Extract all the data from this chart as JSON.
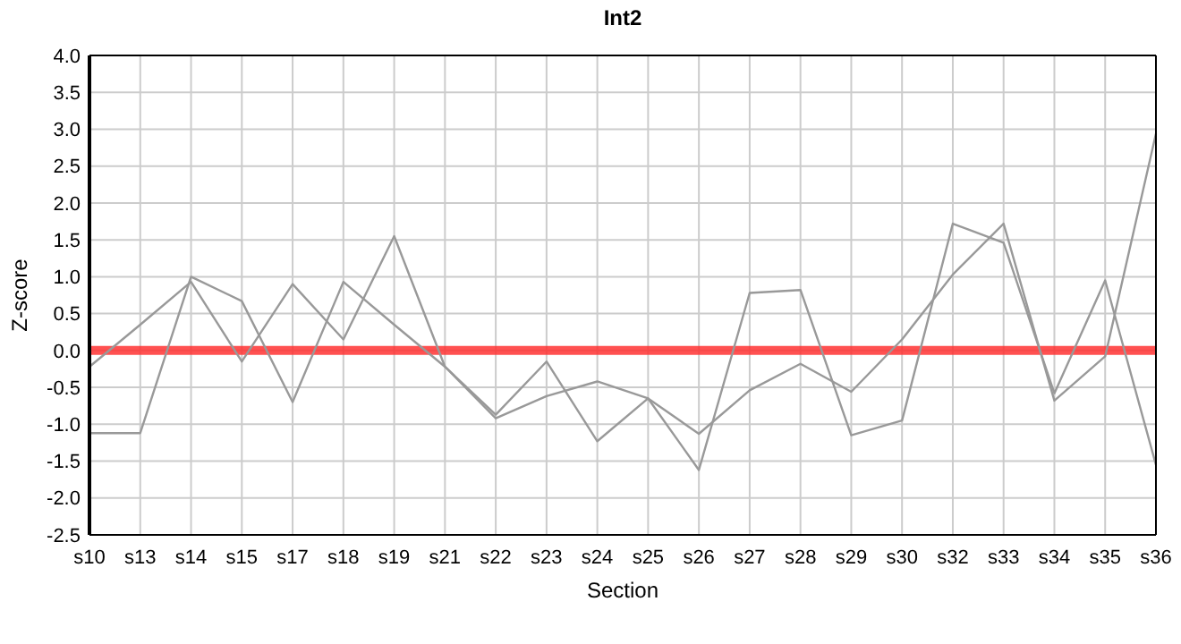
{
  "chart_data": {
    "type": "line",
    "title": "Int2",
    "xlabel": "Section",
    "ylabel": "Z-score",
    "categories": [
      "s10",
      "s13",
      "s14",
      "s15",
      "s17",
      "s18",
      "s19",
      "s21",
      "s22",
      "s23",
      "s24",
      "s25",
      "s26",
      "s27",
      "s28",
      "s29",
      "s30",
      "s32",
      "s33",
      "s34",
      "s35",
      "s36"
    ],
    "series": [
      {
        "color": "#999999",
        "values": [
          -0.22,
          0.35,
          0.93,
          -0.15,
          0.9,
          0.15,
          1.55,
          -0.22,
          -0.87,
          -0.15,
          -1.23,
          -0.65,
          -1.62,
          0.78,
          0.82,
          -1.15,
          -0.95,
          1.72,
          1.46,
          -0.58,
          0.95,
          -1.55
        ]
      },
      {
        "color": "#999999",
        "values": [
          -1.12,
          -1.12,
          1.0,
          0.67,
          -0.7,
          0.93,
          0.35,
          -0.22,
          -0.92,
          -0.62,
          -0.42,
          -0.65,
          -1.13,
          -0.54,
          -0.18,
          -0.56,
          0.15,
          1.03,
          1.72,
          -0.68,
          -0.08,
          2.94
        ]
      }
    ],
    "ylim": [
      -2.5,
      4.0
    ],
    "yticks": [
      {
        "value": -2.5,
        "label": "-2.5"
      },
      {
        "value": -2,
        "label": "-2.0"
      },
      {
        "value": -1.5,
        "label": "-1.5"
      },
      {
        "value": -1,
        "label": "-1.0"
      },
      {
        "value": -0.5,
        "label": "-0.5"
      },
      {
        "value": 0,
        "label": "0.0"
      },
      {
        "value": 0.5,
        "label": "0.5"
      },
      {
        "value": 1,
        "label": "1.0"
      },
      {
        "value": 1.5,
        "label": "1.5"
      },
      {
        "value": 2,
        "label": "2.0"
      },
      {
        "value": 2.5,
        "label": "2.5"
      },
      {
        "value": 3,
        "label": "3.0"
      },
      {
        "value": 3.5,
        "label": "3.5"
      },
      {
        "value": 4,
        "label": "4.0"
      }
    ],
    "ref_lines": [
      {
        "axis": "y",
        "value": 0,
        "color": "#ff3333"
      }
    ],
    "grid": true,
    "marker": "none",
    "line_style": "solid"
  }
}
